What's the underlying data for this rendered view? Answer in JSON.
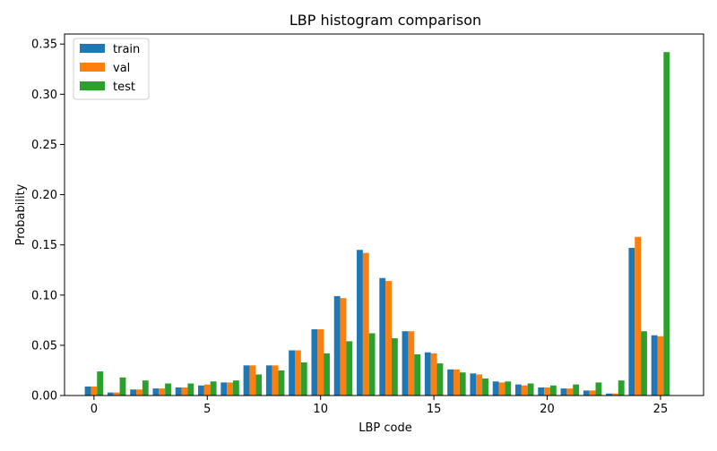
{
  "chart_data": {
    "type": "bar",
    "title": "LBP histogram comparison",
    "xlabel": "LBP code",
    "ylabel": "Probability",
    "x": [
      0,
      1,
      2,
      3,
      4,
      5,
      6,
      7,
      8,
      9,
      10,
      11,
      12,
      13,
      14,
      15,
      16,
      17,
      18,
      19,
      20,
      21,
      22,
      23,
      24,
      25
    ],
    "xlim": [
      -1.3,
      26.9
    ],
    "ylim": [
      0,
      0.36
    ],
    "x_ticks": [
      0,
      5,
      10,
      15,
      20,
      25
    ],
    "y_ticks": [
      0.0,
      0.05,
      0.1,
      0.15,
      0.2,
      0.25,
      0.3,
      0.35
    ],
    "grid": false,
    "legend_position": "top-left",
    "series": [
      {
        "name": "train",
        "color": "#1f77b4",
        "values": [
          0.009,
          0.003,
          0.006,
          0.007,
          0.008,
          0.01,
          0.013,
          0.03,
          0.03,
          0.045,
          0.066,
          0.099,
          0.145,
          0.117,
          0.064,
          0.043,
          0.026,
          0.022,
          0.014,
          0.011,
          0.008,
          0.007,
          0.005,
          0.002,
          0.147,
          0.06
        ]
      },
      {
        "name": "val",
        "color": "#ff7f0e",
        "values": [
          0.009,
          0.003,
          0.006,
          0.007,
          0.008,
          0.011,
          0.013,
          0.03,
          0.03,
          0.045,
          0.066,
          0.097,
          0.142,
          0.114,
          0.064,
          0.042,
          0.026,
          0.021,
          0.013,
          0.01,
          0.008,
          0.007,
          0.005,
          0.002,
          0.158,
          0.059
        ]
      },
      {
        "name": "test",
        "color": "#2ca02c",
        "values": [
          0.024,
          0.018,
          0.015,
          0.012,
          0.012,
          0.014,
          0.015,
          0.021,
          0.025,
          0.033,
          0.042,
          0.054,
          0.062,
          0.057,
          0.041,
          0.032,
          0.023,
          0.017,
          0.014,
          0.012,
          0.01,
          0.011,
          0.013,
          0.015,
          0.064,
          0.342
        ]
      }
    ]
  }
}
